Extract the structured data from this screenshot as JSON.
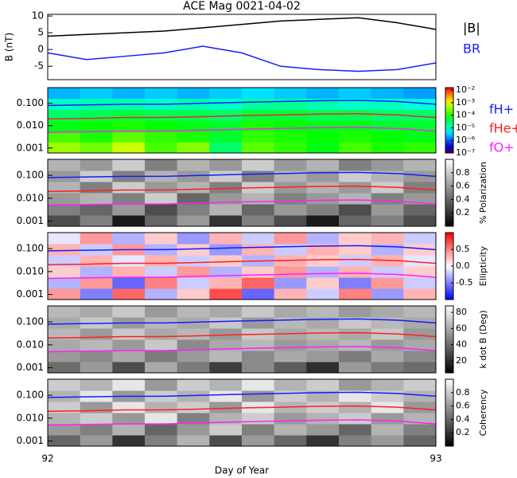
{
  "chart_data": [
    {
      "type": "line",
      "title": "ACE Mag 0021-04-02",
      "ylabel": "B (nT)",
      "xlim": [
        92,
        93
      ],
      "ylim": [
        -9,
        10.5
      ],
      "yticks": [
        -5,
        0,
        5,
        10
      ],
      "x": [
        92.0,
        92.1,
        92.2,
        92.3,
        92.4,
        92.5,
        92.6,
        92.7,
        92.8,
        92.9,
        93.0
      ],
      "series": [
        {
          "name": "|B|",
          "color": "#000000",
          "values": [
            4,
            4.5,
            5,
            5.5,
            6.5,
            7.5,
            8.5,
            9,
            9.5,
            8,
            6
          ]
        },
        {
          "name": "BR",
          "color": "#1a1aff",
          "values": [
            -1,
            -3,
            -2,
            -1,
            1,
            -1,
            -5,
            -6,
            -6.5,
            -6,
            -4
          ]
        }
      ]
    },
    {
      "type": "heatmap",
      "log_y": true,
      "xlim": [
        92,
        93
      ],
      "ylim": [
        0.0006,
        0.5
      ],
      "yticks": [
        {
          "value": 0.001,
          "label": "0.001"
        },
        {
          "value": 0.01,
          "label": "0.010"
        },
        {
          "value": 0.1,
          "label": "0.100"
        }
      ],
      "colormap": "rainbow",
      "clim": [
        -7,
        -1.8
      ],
      "cticks": [
        {
          "value": -2,
          "label": "10⁻²"
        },
        {
          "value": -3,
          "label": "10⁻³"
        },
        {
          "value": -4,
          "label": "10⁻⁴"
        },
        {
          "value": -5,
          "label": "10⁻⁵"
        },
        {
          "value": -6,
          "label": "10⁻⁶"
        },
        {
          "value": -7,
          "label": "10⁻⁷"
        }
      ],
      "z": [
        [
          -3.4,
          -3.6,
          -3.2,
          -3.8,
          -3.5,
          -4.6,
          -3.7,
          -3.9,
          -4.2,
          -3.8,
          -4.0,
          -3.9
        ],
        [
          -3.8,
          -4.0,
          -3.7,
          -3.9,
          -4.0,
          -4.3,
          -3.9,
          -4.0,
          -4.1,
          -4.0,
          -4.1,
          -4.2
        ],
        [
          -4.2,
          -4.1,
          -4.0,
          -4.1,
          -4.2,
          -4.3,
          -4.0,
          -4.1,
          -4.2,
          -4.2,
          -4.3,
          -4.3
        ],
        [
          -4.6,
          -4.5,
          -4.4,
          -4.5,
          -4.5,
          -4.6,
          -4.4,
          -4.4,
          -4.5,
          -4.5,
          -4.6,
          -4.6
        ],
        [
          -5.0,
          -4.9,
          -4.9,
          -5.0,
          -4.9,
          -5.0,
          -4.8,
          -4.8,
          -4.9,
          -5.0,
          -5.0,
          -5.1
        ],
        [
          -5.6,
          -5.5,
          -5.6,
          -5.5,
          -5.6,
          -5.5,
          -5.4,
          -5.5,
          -5.6,
          -5.5,
          -5.6,
          -5.7
        ]
      ],
      "x": [
        92.0,
        92.1,
        92.2,
        92.3,
        92.4,
        92.5,
        92.6,
        92.7,
        92.8,
        92.9,
        93.0
      ],
      "series": [
        {
          "name": "fH+",
          "color": "#1a1aff",
          "values": [
            0.08,
            0.085,
            0.09,
            0.09,
            0.1,
            0.11,
            0.12,
            0.13,
            0.135,
            0.12,
            0.09
          ]
        },
        {
          "name": "fHe+",
          "color": "#ff2020",
          "values": [
            0.02,
            0.021,
            0.023,
            0.023,
            0.025,
            0.028,
            0.03,
            0.033,
            0.034,
            0.03,
            0.023
          ]
        },
        {
          "name": "fO+",
          "color": "#ff20ff",
          "values": [
            0.005,
            0.0053,
            0.0056,
            0.0056,
            0.0063,
            0.0069,
            0.0075,
            0.0081,
            0.0084,
            0.0075,
            0.0056
          ]
        }
      ]
    },
    {
      "type": "heatmap",
      "log_y": true,
      "xlim": [
        92,
        93
      ],
      "ylim": [
        0.0006,
        0.5
      ],
      "yticks": [
        {
          "value": 0.001,
          "label": "0.001"
        },
        {
          "value": 0.01,
          "label": "0.010"
        },
        {
          "value": 0.1,
          "label": "0.100"
        }
      ],
      "colormap": "gray",
      "clim": [
        0,
        1
      ],
      "clabel": "% Polarization",
      "cticks": [
        0.2,
        0.4,
        0.6,
        0.8
      ],
      "z": [
        [
          0.3,
          0.5,
          0.1,
          0.4,
          0.6,
          0.2,
          0.5,
          0.3,
          0.1,
          0.4,
          0.5,
          0.3
        ],
        [
          0.5,
          0.4,
          0.6,
          0.3,
          0.5,
          0.7,
          0.4,
          0.6,
          0.5,
          0.3,
          0.6,
          0.4
        ],
        [
          0.6,
          0.7,
          0.5,
          0.8,
          0.4,
          0.6,
          0.7,
          0.5,
          0.6,
          0.7,
          0.5,
          0.6
        ],
        [
          0.7,
          0.5,
          0.8,
          0.6,
          0.7,
          0.5,
          0.8,
          0.6,
          0.7,
          0.6,
          0.8,
          0.5
        ],
        [
          0.6,
          0.8,
          0.5,
          0.7,
          0.6,
          0.8,
          0.5,
          0.7,
          0.6,
          0.8,
          0.7,
          0.6
        ],
        [
          0.7,
          0.6,
          0.8,
          0.5,
          0.7,
          0.6,
          0.8,
          0.6,
          0.7,
          0.5,
          0.6,
          0.7
        ]
      ],
      "x": [
        92.0,
        92.1,
        92.2,
        92.3,
        92.4,
        92.5,
        92.6,
        92.7,
        92.8,
        92.9,
        93.0
      ],
      "series": [
        {
          "color": "#1a1aff",
          "values": [
            0.08,
            0.085,
            0.09,
            0.09,
            0.1,
            0.11,
            0.12,
            0.13,
            0.135,
            0.12,
            0.09
          ]
        },
        {
          "color": "#ff2020",
          "values": [
            0.02,
            0.021,
            0.023,
            0.023,
            0.025,
            0.028,
            0.03,
            0.033,
            0.034,
            0.03,
            0.023
          ]
        },
        {
          "color": "#ff20ff",
          "values": [
            0.005,
            0.0053,
            0.0056,
            0.0056,
            0.0063,
            0.0069,
            0.0075,
            0.0081,
            0.0084,
            0.0075,
            0.0056
          ]
        }
      ]
    },
    {
      "type": "heatmap",
      "log_y": true,
      "xlim": [
        92,
        93
      ],
      "ylim": [
        0.0006,
        0.5
      ],
      "yticks": [
        {
          "value": 0.001,
          "label": "0.001"
        },
        {
          "value": 0.01,
          "label": "0.010"
        },
        {
          "value": 0.1,
          "label": "0.100"
        }
      ],
      "colormap": "bwr",
      "clim": [
        -1,
        1
      ],
      "clabel": "Ellipticity",
      "cticks": [
        -0.5,
        {
          "value": 0,
          "label": "0.0"
        },
        0.5
      ],
      "z": [
        [
          0.4,
          -0.5,
          0.6,
          -0.3,
          0.2,
          0.7,
          -0.6,
          0.3,
          -0.2,
          0.5,
          -0.4,
          0.3
        ],
        [
          -0.3,
          0.4,
          -0.6,
          0.5,
          -0.2,
          0.3,
          0.6,
          -0.4,
          0.2,
          -0.5,
          0.4,
          -0.2
        ],
        [
          0.2,
          -0.3,
          0.3,
          -0.2,
          0.4,
          -0.3,
          0.2,
          0.4,
          -0.3,
          0.3,
          -0.2,
          0.2
        ],
        [
          -0.2,
          0.3,
          -0.1,
          0.3,
          -0.2,
          0.2,
          -0.3,
          0.3,
          0.2,
          -0.2,
          0.3,
          -0.1
        ],
        [
          0.3,
          -0.2,
          0.4,
          -0.3,
          0.2,
          -0.4,
          0.3,
          -0.2,
          0.3,
          0.2,
          -0.3,
          0.2
        ],
        [
          -0.1,
          0.4,
          -0.3,
          0.2,
          -0.4,
          0.3,
          -0.2,
          0.4,
          -0.3,
          0.2,
          0.3,
          -0.2
        ]
      ],
      "x": [
        92.0,
        92.1,
        92.2,
        92.3,
        92.4,
        92.5,
        92.6,
        92.7,
        92.8,
        92.9,
        93.0
      ],
      "series": [
        {
          "color": "#1a1aff",
          "values": [
            0.08,
            0.085,
            0.09,
            0.09,
            0.1,
            0.11,
            0.12,
            0.13,
            0.135,
            0.12,
            0.09
          ]
        },
        {
          "color": "#ff2020",
          "values": [
            0.02,
            0.021,
            0.023,
            0.023,
            0.025,
            0.028,
            0.03,
            0.033,
            0.034,
            0.03,
            0.023
          ]
        },
        {
          "color": "#ff20ff",
          "values": [
            0.005,
            0.0053,
            0.0056,
            0.0056,
            0.0063,
            0.0069,
            0.0075,
            0.0081,
            0.0084,
            0.0075,
            0.0056
          ]
        }
      ]
    },
    {
      "type": "heatmap",
      "log_y": true,
      "xlim": [
        92,
        93
      ],
      "ylim": [
        0.0006,
        0.5
      ],
      "yticks": [
        {
          "value": 0.001,
          "label": "0.001"
        },
        {
          "value": 0.01,
          "label": "0.010"
        },
        {
          "value": 0.1,
          "label": "0.100"
        }
      ],
      "colormap": "gray",
      "clim": [
        5,
        88
      ],
      "clabel": "k dot B (Deg)",
      "cticks": [
        20,
        40,
        60,
        80
      ],
      "z": [
        [
          40,
          55,
          30,
          60,
          45,
          25,
          50,
          35,
          20,
          55,
          45,
          40
        ],
        [
          55,
          50,
          60,
          45,
          55,
          65,
          50,
          60,
          55,
          45,
          60,
          50
        ],
        [
          60,
          65,
          55,
          70,
          50,
          60,
          65,
          55,
          60,
          65,
          55,
          60
        ],
        [
          65,
          55,
          70,
          60,
          65,
          55,
          70,
          60,
          65,
          60,
          70,
          55
        ],
        [
          60,
          70,
          55,
          65,
          60,
          70,
          55,
          65,
          60,
          70,
          65,
          60
        ],
        [
          65,
          60,
          70,
          55,
          65,
          60,
          70,
          60,
          65,
          55,
          60,
          65
        ]
      ],
      "x": [
        92.0,
        92.1,
        92.2,
        92.3,
        92.4,
        92.5,
        92.6,
        92.7,
        92.8,
        92.9,
        93.0
      ],
      "series": [
        {
          "color": "#1a1aff",
          "values": [
            0.08,
            0.085,
            0.09,
            0.09,
            0.1,
            0.11,
            0.12,
            0.13,
            0.135,
            0.12,
            0.09
          ]
        },
        {
          "color": "#ff2020",
          "values": [
            0.02,
            0.021,
            0.023,
            0.023,
            0.025,
            0.028,
            0.03,
            0.033,
            0.034,
            0.03,
            0.023
          ]
        },
        {
          "color": "#ff20ff",
          "values": [
            0.005,
            0.0053,
            0.0056,
            0.0056,
            0.0063,
            0.0069,
            0.0075,
            0.0081,
            0.0084,
            0.0075,
            0.0056
          ]
        }
      ]
    },
    {
      "type": "heatmap",
      "log_y": true,
      "xlim": [
        92,
        93
      ],
      "ylim": [
        0.0006,
        0.5
      ],
      "yticks": [
        {
          "value": 0.001,
          "label": "0.001"
        },
        {
          "value": 0.01,
          "label": "0.010"
        },
        {
          "value": 0.1,
          "label": "0.100"
        }
      ],
      "xticks": [
        92,
        93
      ],
      "xlabel": "Day of Year",
      "colormap": "gray",
      "clim": [
        0,
        1
      ],
      "clabel": "Coherency",
      "cticks": [
        0.2,
        0.4,
        0.6,
        0.8
      ],
      "z": [
        [
          0.4,
          0.6,
          0.2,
          0.5,
          0.7,
          0.3,
          0.6,
          0.4,
          0.2,
          0.5,
          0.6,
          0.4
        ],
        [
          0.6,
          0.5,
          0.7,
          0.4,
          0.6,
          0.8,
          0.5,
          0.7,
          0.6,
          0.4,
          0.7,
          0.5
        ],
        [
          0.7,
          0.8,
          0.6,
          0.9,
          0.5,
          0.7,
          0.8,
          0.6,
          0.7,
          0.8,
          0.6,
          0.7
        ],
        [
          0.8,
          0.6,
          0.9,
          0.7,
          0.8,
          0.6,
          0.9,
          0.7,
          0.8,
          0.7,
          0.9,
          0.6
        ],
        [
          0.7,
          0.9,
          0.6,
          0.8,
          0.7,
          0.9,
          0.6,
          0.8,
          0.7,
          0.9,
          0.8,
          0.7
        ],
        [
          0.8,
          0.7,
          0.9,
          0.6,
          0.8,
          0.7,
          0.9,
          0.7,
          0.8,
          0.6,
          0.7,
          0.8
        ]
      ],
      "x": [
        92.0,
        92.1,
        92.2,
        92.3,
        92.4,
        92.5,
        92.6,
        92.7,
        92.8,
        92.9,
        93.0
      ],
      "series": [
        {
          "color": "#1a1aff",
          "values": [
            0.08,
            0.085,
            0.09,
            0.09,
            0.1,
            0.11,
            0.12,
            0.13,
            0.135,
            0.12,
            0.09
          ]
        },
        {
          "color": "#ff2020",
          "values": [
            0.02,
            0.021,
            0.023,
            0.023,
            0.025,
            0.028,
            0.03,
            0.033,
            0.034,
            0.03,
            0.023
          ]
        },
        {
          "color": "#ff20ff",
          "values": [
            0.005,
            0.0053,
            0.0056,
            0.0056,
            0.0063,
            0.0069,
            0.0075,
            0.0081,
            0.0084,
            0.0075,
            0.0056
          ]
        }
      ]
    }
  ]
}
